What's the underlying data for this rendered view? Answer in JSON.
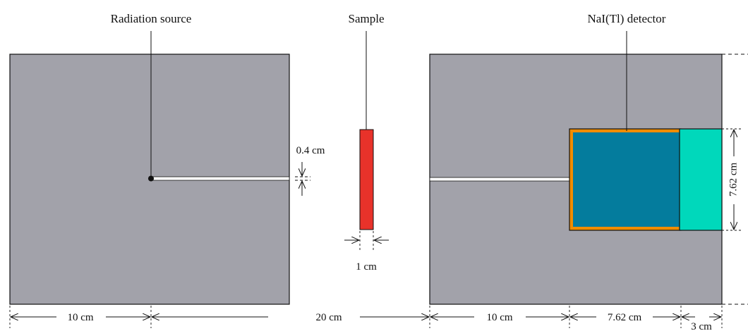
{
  "labels": {
    "radiation_source": "Radiation source",
    "sample": "Sample",
    "detector": "NaI(Tl) detector"
  },
  "dimensions": {
    "collimator_gap": "0.4 cm",
    "sample_width": "1 cm",
    "source_shield_half": "10 cm",
    "shield_separation": "20 cm",
    "detector_shield_half": "10 cm",
    "crystal_length": "7.62 cm",
    "pmt_length": "3 cm",
    "crystal_diameter": "7.62 cm"
  },
  "colors": {
    "shield": "#a2a2aa",
    "sample": "#e8322a",
    "crystal": "#047c9d",
    "crystal_housing": "#f08c00",
    "pmt": "#00d8bb",
    "line": "#111111"
  }
}
